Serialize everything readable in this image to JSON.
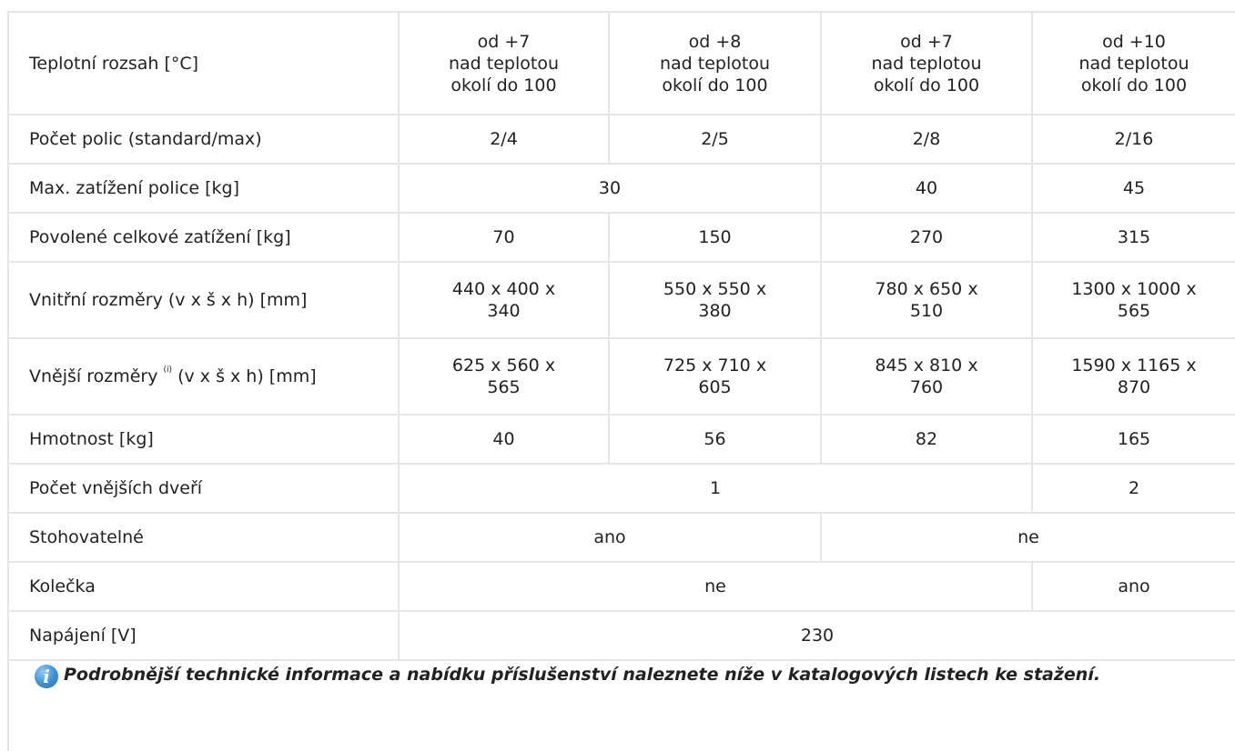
{
  "rows": [
    {
      "label": "Teplotní rozsah [°C]",
      "cells": [
        {
          "text": "od +7\nnad teplotou\nokolí do 100"
        },
        {
          "text": "od +8\nnad teplotou\nokolí do 100"
        },
        {
          "text": "od +7\nnad teplotou\nokolí do 100"
        },
        {
          "text": "od +10\nnad teplotou\nokolí do 100"
        }
      ]
    },
    {
      "label": "Počet polic (standard/max)",
      "cells": [
        {
          "text": "2/4"
        },
        {
          "text": "2/5"
        },
        {
          "text": "2/8"
        },
        {
          "text": "2/16"
        }
      ]
    },
    {
      "label": "Max. zatížení police [kg]",
      "cells": [
        {
          "text": "30"
        },
        {
          "text": "40"
        },
        {
          "text": "45"
        }
      ]
    },
    {
      "label": "Povolené celkové zatížení [kg]",
      "cells": [
        {
          "text": "70"
        },
        {
          "text": "150"
        },
        {
          "text": "270"
        },
        {
          "text": "315"
        }
      ]
    },
    {
      "label": "Vnitřní rozměry (v x š x h) [mm]",
      "cells": [
        {
          "text": "440 x 400 x\n340"
        },
        {
          "text": "550 x 550 x\n380"
        },
        {
          "text": "780 x 650 x\n510"
        },
        {
          "text": "1300 x 1000 x\n565"
        }
      ]
    },
    {
      "label_before": "Vnější rozměry ",
      "label_note": "(i)",
      "label_after": " (v x š x h) [mm]",
      "cells": [
        {
          "text": "625 x 560 x\n565"
        },
        {
          "text": "725 x 710 x\n605"
        },
        {
          "text": "845 x 810 x\n760"
        },
        {
          "text": "1590 x 1165 x\n870"
        }
      ]
    },
    {
      "label": "Hmotnost [kg]",
      "cells": [
        {
          "text": "40"
        },
        {
          "text": "56"
        },
        {
          "text": "82"
        },
        {
          "text": "165"
        }
      ]
    },
    {
      "label": "Počet vnějších dveří",
      "cells": [
        {
          "text": "1"
        },
        {
          "text": "2"
        }
      ]
    },
    {
      "label": "Stohovatelné",
      "cells": [
        {
          "text": "ano"
        },
        {
          "text": "ne"
        }
      ]
    },
    {
      "label": "Kolečka",
      "cells": [
        {
          "text": "ne"
        },
        {
          "text": "ano"
        }
      ]
    },
    {
      "label": "Napájení [V]",
      "cells": [
        {
          "text": "230"
        }
      ]
    }
  ],
  "footer": {
    "icon": "info-icon",
    "icon_glyph": "i",
    "text": "Podrobnější technické informace a nabídku příslušenství naleznete níže v katalogových listech ke stažení."
  }
}
